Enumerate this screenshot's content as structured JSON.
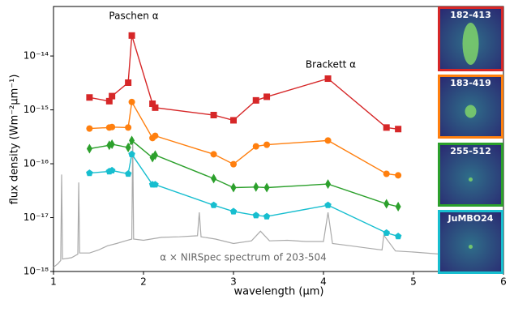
{
  "chart_data": {
    "type": "line",
    "log_y": true,
    "xlabel": "wavelength (µm)",
    "ylabel": "flux density (Wm⁻²µm⁻¹)",
    "xlim": [
      1,
      6
    ],
    "xticks": [
      1,
      2,
      3,
      4,
      5,
      6
    ],
    "ylim": [
      1e-18,
      8.3e-14
    ],
    "yticks": [
      {
        "value": 1e-18,
        "label": "10⁻¹⁸"
      },
      {
        "value": 1e-17,
        "label": "10⁻¹⁷"
      },
      {
        "value": 1e-16,
        "label": "10⁻¹⁶"
      },
      {
        "value": 1e-15,
        "label": "10⁻¹⁵"
      },
      {
        "value": 1e-14,
        "label": "10⁻¹⁴"
      }
    ],
    "annotations": [
      "Paschen α",
      "Brackett α"
    ],
    "x": [
      1.4,
      1.62,
      1.65,
      1.83,
      1.87,
      2.1,
      2.13,
      2.78,
      3.0,
      3.25,
      3.37,
      4.05,
      4.7,
      4.83
    ],
    "series": [
      {
        "name": "182-413",
        "color": "#d62728",
        "marker": "square",
        "values": [
          1.7e-15,
          1.45e-15,
          1.8e-15,
          3.2e-15,
          2.4e-14,
          1.3e-15,
          1.1e-15,
          8e-16,
          6.4e-16,
          1.5e-15,
          1.75e-15,
          3.8e-15,
          4.7e-16,
          4.4e-16
        ]
      },
      {
        "name": "183-419",
        "color": "#ff7f0e",
        "marker": "circle",
        "values": [
          4.5e-16,
          4.7e-16,
          4.8e-16,
          4.7e-16,
          1.4e-15,
          3e-16,
          3.3e-16,
          1.5e-16,
          9.8e-17,
          2.1e-16,
          2.25e-16,
          2.7e-16,
          6.5e-17,
          6.1e-17
        ]
      },
      {
        "name": "255-512",
        "color": "#2ca02c",
        "marker": "diamond",
        "values": [
          1.9e-16,
          2.2e-16,
          2.3e-16,
          2e-16,
          2.7e-16,
          1.3e-16,
          1.45e-16,
          5.3e-17,
          3.6e-17,
          3.7e-17,
          3.6e-17,
          4.2e-17,
          1.8e-17,
          1.6e-17
        ]
      },
      {
        "name": "JuMBO24",
        "color": "#17becf",
        "marker": "pentagon",
        "values": [
          6.7e-17,
          7.2e-17,
          7.5e-17,
          6.5e-17,
          1.5e-16,
          4.1e-17,
          4.1e-17,
          1.7e-17,
          1.3e-17,
          1.1e-17,
          1.05e-17,
          1.7e-17,
          5.2e-18,
          4.5e-18
        ]
      }
    ],
    "spectrum": {
      "label": "α × NIRSpec spectrum of 203-504",
      "color": "#aaaaaa",
      "x": [
        1.0,
        1.05,
        1.08,
        1.09,
        1.1,
        1.2,
        1.27,
        1.28,
        1.29,
        1.4,
        1.5,
        1.6,
        1.7,
        1.8,
        1.87,
        1.88,
        1.89,
        2.0,
        2.2,
        2.4,
        2.6,
        2.62,
        2.64,
        2.8,
        3.0,
        3.2,
        3.3,
        3.4,
        3.6,
        3.8,
        4.0,
        4.05,
        4.1,
        4.3,
        4.5,
        4.65,
        4.67,
        4.8,
        5.0,
        5.3
      ],
      "values": [
        1.2e-18,
        1.4e-18,
        1.6e-18,
        6.3e-17,
        1.7e-18,
        1.8e-18,
        2.1e-18,
        4.5e-17,
        2.2e-18,
        2.2e-18,
        2.5e-18,
        3e-18,
        3.3e-18,
        3.7e-18,
        4e-18,
        3e-16,
        4e-18,
        3.8e-18,
        4.3e-18,
        4.4e-18,
        4.6e-18,
        1.25e-17,
        4.4e-18,
        4e-18,
        3.3e-18,
        3.7e-18,
        5.6e-18,
        3.7e-18,
        3.8e-18,
        3.6e-18,
        3.6e-18,
        1.25e-17,
        3.3e-18,
        3e-18,
        2.7e-18,
        2.5e-18,
        4.7e-18,
        2.4e-18,
        2.3e-18,
        2.1e-18
      ]
    }
  }
}
